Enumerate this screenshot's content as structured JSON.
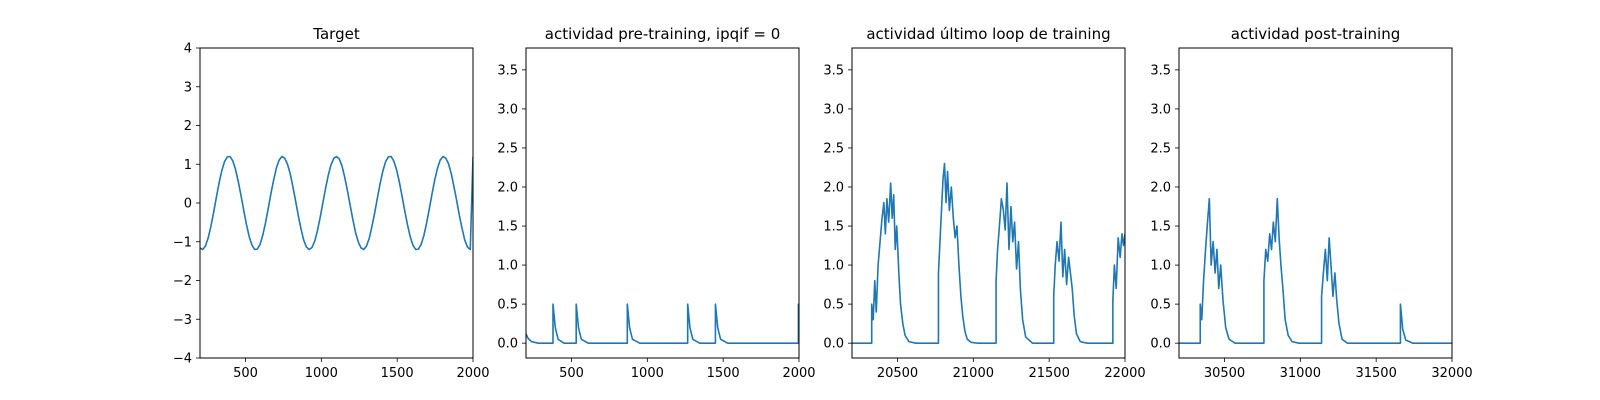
{
  "colors": {
    "series": "#1f77b4",
    "axis": "#000000",
    "background": "#ffffff"
  },
  "chart_data": [
    {
      "type": "line",
      "title": "Target",
      "xlabel": "",
      "ylabel": "",
      "xlim": [
        200,
        2000
      ],
      "ylim": [
        -4,
        4
      ],
      "xticks": [
        500,
        1000,
        1500,
        2000
      ],
      "yticks": [
        -4,
        -3,
        -2,
        -1,
        0,
        1,
        2,
        3,
        4
      ],
      "grid": false,
      "series": [
        {
          "x": [
            200,
            218,
            236,
            254,
            272,
            290,
            308,
            326,
            344,
            362,
            380,
            398,
            416,
            434,
            452,
            470,
            488,
            506,
            524,
            542,
            560,
            578,
            596,
            614,
            632,
            650,
            668,
            686,
            704,
            722,
            740,
            758,
            776,
            794,
            812,
            830,
            848,
            866,
            884,
            902,
            920,
            938,
            956,
            974,
            992,
            1010,
            1028,
            1046,
            1064,
            1082,
            1100,
            1118,
            1136,
            1154,
            1172,
            1190,
            1208,
            1226,
            1244,
            1262,
            1280,
            1298,
            1316,
            1334,
            1352,
            1370,
            1388,
            1406,
            1424,
            1442,
            1460,
            1478,
            1496,
            1514,
            1532,
            1550,
            1568,
            1586,
            1604,
            1622,
            1640,
            1658,
            1676,
            1694,
            1712,
            1730,
            1748,
            1766,
            1784,
            1802,
            1820,
            1838,
            1856,
            1874,
            1892,
            1910,
            1928,
            1946,
            1964,
            1982,
            2000
          ],
          "y": [
            -1.16,
            -1.2,
            -1.11,
            -0.9,
            -0.6,
            -0.24,
            0.15,
            0.52,
            0.84,
            1.07,
            1.19,
            1.2,
            1.09,
            0.87,
            0.56,
            0.2,
            -0.18,
            -0.55,
            -0.86,
            -1.08,
            -1.2,
            -1.19,
            -1.07,
            -0.83,
            -0.51,
            -0.14,
            0.25,
            0.6,
            0.91,
            1.11,
            1.2,
            1.16,
            1.01,
            0.77,
            0.43,
            0.06,
            -0.32,
            -0.67,
            -0.96,
            -1.14,
            -1.2,
            -1.15,
            -0.99,
            -0.72,
            -0.38,
            0.0,
            0.38,
            0.72,
            0.99,
            1.15,
            1.2,
            1.14,
            0.96,
            0.67,
            0.32,
            -0.06,
            -0.43,
            -0.77,
            -1.01,
            -1.16,
            -1.2,
            -1.11,
            -0.91,
            -0.6,
            -0.25,
            0.14,
            0.51,
            0.83,
            1.07,
            1.19,
            1.2,
            1.08,
            0.86,
            0.55,
            0.18,
            -0.2,
            -0.56,
            -0.87,
            -1.09,
            -1.2,
            -1.19,
            -1.07,
            -0.84,
            -0.52,
            -0.15,
            0.24,
            0.6,
            0.9,
            1.11,
            1.2,
            1.16,
            1.02,
            0.77,
            0.43,
            0.07,
            -0.32,
            -0.66,
            -0.96,
            -1.14,
            -1.2,
            1.19
          ]
        }
      ]
    },
    {
      "type": "line",
      "title": "actividad pre-training, ipqif = 0",
      "xlabel": "",
      "ylabel": "",
      "xlim": [
        200,
        2000
      ],
      "ylim": [
        -0.19,
        3.78
      ],
      "xticks": [
        500,
        1000,
        1500,
        2000
      ],
      "yticks": [
        0.0,
        0.5,
        1.0,
        1.5,
        2.0,
        2.5,
        3.0,
        3.5
      ],
      "ytick_labels": [
        "0.0",
        "0.5",
        "1.0",
        "1.5",
        "2.0",
        "2.5",
        "3.0",
        "3.5"
      ],
      "grid": false,
      "series": [
        {
          "x": [
            200,
            214,
            236,
            280,
            378,
            378,
            393,
            412,
            450,
            531,
            531,
            546,
            565,
            610,
            868,
            868,
            883,
            902,
            950,
            1266,
            1266,
            1281,
            1300,
            1345,
            1449,
            1449,
            1464,
            1483,
            1530,
            1996,
            1996,
            2000
          ],
          "y": [
            0.12,
            0.06,
            0.02,
            0.0,
            0.0,
            0.5,
            0.2,
            0.05,
            0.0,
            0.0,
            0.5,
            0.2,
            0.05,
            0.0,
            0.0,
            0.5,
            0.2,
            0.05,
            0.0,
            0.0,
            0.5,
            0.2,
            0.05,
            0.0,
            0.0,
            0.5,
            0.2,
            0.05,
            0.0,
            0.0,
            0.5,
            0.25
          ]
        }
      ]
    },
    {
      "type": "line",
      "title": "actividad último loop de training",
      "xlabel": "",
      "ylabel": "",
      "xlim": [
        20200,
        22000
      ],
      "ylim": [
        -0.19,
        3.78
      ],
      "xticks": [
        20500,
        21000,
        21500,
        22000
      ],
      "yticks": [
        0.0,
        0.5,
        1.0,
        1.5,
        2.0,
        2.5,
        3.0,
        3.5
      ],
      "ytick_labels": [
        "0.0",
        "0.5",
        "1.0",
        "1.5",
        "2.0",
        "2.5",
        "3.0",
        "3.5"
      ],
      "grid": false,
      "series": [
        {
          "x": [
            20200,
            20330,
            20330,
            20340,
            20350,
            20360,
            20372,
            20385,
            20398,
            20410,
            20420,
            20430,
            20442,
            20455,
            20465,
            20475,
            20485,
            20495,
            20510,
            20520,
            20535,
            20550,
            20575,
            20620,
            20770,
            20770,
            20780,
            20790,
            20800,
            20810,
            20820,
            20830,
            20842,
            20855,
            20868,
            20880,
            20892,
            20905,
            20918,
            20930,
            20945,
            20960,
            20985,
            21030,
            21150,
            21150,
            21160,
            21172,
            21185,
            21198,
            21210,
            21222,
            21235,
            21248,
            21260,
            21272,
            21285,
            21298,
            21310,
            21325,
            21345,
            21390,
            21530,
            21530,
            21540,
            21552,
            21565,
            21578,
            21590,
            21602,
            21615,
            21628,
            21640,
            21652,
            21665,
            21680,
            21705,
            21750,
            21920,
            21920,
            21930,
            21942,
            21955,
            21968,
            21980,
            21990,
            22000
          ],
          "y": [
            0.0,
            0.0,
            0.5,
            0.3,
            0.8,
            0.4,
            1.0,
            1.3,
            1.6,
            1.8,
            1.4,
            1.85,
            1.55,
            2.05,
            1.6,
            1.9,
            1.2,
            1.5,
            0.85,
            0.5,
            0.25,
            0.1,
            0.02,
            0.0,
            0.0,
            0.9,
            1.3,
            1.7,
            2.1,
            2.3,
            1.8,
            2.2,
            1.7,
            2.0,
            1.6,
            1.35,
            1.5,
            1.0,
            0.6,
            0.35,
            0.15,
            0.05,
            0.01,
            0.0,
            0.0,
            0.8,
            1.2,
            1.5,
            1.85,
            1.7,
            1.45,
            2.05,
            1.2,
            1.75,
            1.3,
            1.55,
            0.95,
            1.3,
            0.7,
            0.3,
            0.08,
            0.0,
            0.0,
            0.6,
            1.0,
            1.3,
            1.05,
            1.55,
            0.85,
            1.2,
            0.75,
            1.1,
            0.9,
            0.7,
            0.35,
            0.12,
            0.02,
            0.0,
            0.0,
            0.55,
            1.0,
            0.7,
            1.35,
            1.1,
            1.4,
            1.25,
            1.4
          ]
        }
      ]
    },
    {
      "type": "line",
      "title": "actividad post-training",
      "xlabel": "",
      "ylabel": "",
      "xlim": [
        30200,
        32000
      ],
      "ylim": [
        -0.19,
        3.78
      ],
      "xticks": [
        30500,
        31000,
        31500,
        32000
      ],
      "yticks": [
        0.0,
        0.5,
        1.0,
        1.5,
        2.0,
        2.5,
        3.0,
        3.5
      ],
      "ytick_labels": [
        "0.0",
        "0.5",
        "1.0",
        "1.5",
        "2.0",
        "2.5",
        "3.0",
        "3.5"
      ],
      "grid": false,
      "series": [
        {
          "x": [
            30200,
            30340,
            30340,
            30350,
            30362,
            30375,
            30388,
            30400,
            30412,
            30425,
            30438,
            30450,
            30462,
            30475,
            30490,
            30508,
            30530,
            30570,
            30760,
            30760,
            30772,
            30785,
            30798,
            30810,
            30822,
            30835,
            30848,
            30860,
            30872,
            30885,
            30900,
            30920,
            30945,
            30990,
            31140,
            31140,
            31152,
            31165,
            31178,
            31190,
            31202,
            31215,
            31228,
            31240,
            31255,
            31275,
            31310,
            31660,
            31660,
            31675,
            31695,
            31740,
            32000
          ],
          "y": [
            0.0,
            0.0,
            0.5,
            0.3,
            0.8,
            1.2,
            1.55,
            1.85,
            1.0,
            1.3,
            0.9,
            1.2,
            0.7,
            1.0,
            0.55,
            0.2,
            0.05,
            0.0,
            0.0,
            0.8,
            1.2,
            1.05,
            1.4,
            1.2,
            1.55,
            1.3,
            1.85,
            1.35,
            1.0,
            0.7,
            0.3,
            0.1,
            0.02,
            0.0,
            0.0,
            0.6,
            0.9,
            1.2,
            0.8,
            1.35,
            1.0,
            0.6,
            0.9,
            0.55,
            0.25,
            0.05,
            0.0,
            0.0,
            0.5,
            0.18,
            0.04,
            0.0,
            0.0
          ]
        }
      ]
    }
  ]
}
